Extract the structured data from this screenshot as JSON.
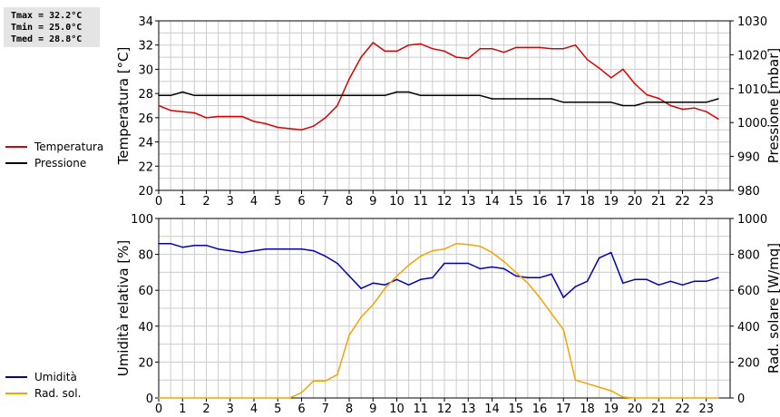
{
  "stats": {
    "tmax": "Tmax = 32.2°C",
    "tmin": "Tmin = 25.0°C",
    "tmed": "Tmed = 28.8°C"
  },
  "colors": {
    "temperature": "#dd0000",
    "pressure": "#000000",
    "humidity": "#0000bb",
    "radiation": "#f5a300",
    "grid": "#cccccc"
  },
  "chart_data": [
    {
      "type": "line",
      "x_tick_labels": [
        "0",
        "1",
        "2",
        "3",
        "4",
        "5",
        "6",
        "7",
        "8",
        "9",
        "10",
        "11",
        "12",
        "13",
        "14",
        "15",
        "16",
        "17",
        "18",
        "19",
        "20",
        "21",
        "22",
        "23"
      ],
      "xlim": [
        0,
        24
      ],
      "ylabel": "Temperatura [°C]",
      "ylim": [
        20,
        34
      ],
      "yticks": [
        20,
        22,
        24,
        26,
        28,
        30,
        32,
        34
      ],
      "y2label": "Pressione [mbar]",
      "y2lim": [
        980,
        1030
      ],
      "y2ticks": [
        980,
        990,
        1000,
        1010,
        1020,
        1030
      ],
      "grid": true,
      "legend": "left",
      "series": [
        {
          "name": "Temperatura",
          "axis": "left",
          "color_key": "temperature",
          "x": [
            0,
            0.5,
            1,
            1.5,
            2,
            2.5,
            3,
            3.5,
            4,
            4.5,
            5,
            5.5,
            6,
            6.5,
            7,
            7.5,
            8,
            8.5,
            9,
            9.5,
            10,
            10.5,
            11,
            11.5,
            12,
            12.5,
            13,
            13.5,
            14,
            14.5,
            15,
            15.5,
            16,
            16.5,
            17,
            17.5,
            18,
            18.5,
            19,
            19.5,
            20,
            20.5,
            21,
            21.5,
            22,
            22.5,
            23,
            23.5
          ],
          "values": [
            27.0,
            26.6,
            26.5,
            26.4,
            26.0,
            26.1,
            26.1,
            26.1,
            25.7,
            25.5,
            25.2,
            25.1,
            25.0,
            25.3,
            26.0,
            27.0,
            29.2,
            31.0,
            32.2,
            31.5,
            31.5,
            32.0,
            32.1,
            31.7,
            31.5,
            31.0,
            30.9,
            31.7,
            31.7,
            31.4,
            31.8,
            31.8,
            31.8,
            31.7,
            31.7,
            32.0,
            30.8,
            30.1,
            29.3,
            30.0,
            28.8,
            27.9,
            27.6,
            27.0,
            26.7,
            26.8,
            26.5,
            25.9
          ]
        },
        {
          "name": "Pressione",
          "axis": "right",
          "color_key": "pressure",
          "x": [
            0,
            0.5,
            1,
            1.5,
            2,
            2.5,
            3,
            3.5,
            4,
            4.5,
            5,
            5.5,
            6,
            6.5,
            7,
            7.5,
            8,
            8.5,
            9,
            9.5,
            10,
            10.5,
            11,
            11.5,
            12,
            12.5,
            13,
            13.5,
            14,
            14.5,
            15,
            15.5,
            16,
            16.5,
            17,
            17.5,
            18,
            18.5,
            19,
            19.5,
            20,
            20.5,
            21,
            21.5,
            22,
            22.5,
            23,
            23.5
          ],
          "values": [
            1008.0,
            1008.0,
            1009.0,
            1008.0,
            1008.0,
            1008.0,
            1008.0,
            1008.0,
            1008.0,
            1008.0,
            1008.0,
            1008.0,
            1008.0,
            1008.0,
            1008.0,
            1008.0,
            1008.0,
            1008.0,
            1008.0,
            1008.0,
            1009.0,
            1009.0,
            1008.0,
            1008.0,
            1008.0,
            1008.0,
            1008.0,
            1008.0,
            1007.0,
            1007.0,
            1007.0,
            1007.0,
            1007.0,
            1007.0,
            1006.0,
            1006.0,
            1006.0,
            1006.0,
            1006.0,
            1005.0,
            1005.0,
            1006.0,
            1006.0,
            1006.0,
            1006.0,
            1006.0,
            1006.0,
            1007.0
          ]
        }
      ]
    },
    {
      "type": "line",
      "x_tick_labels": [
        "0",
        "1",
        "2",
        "3",
        "4",
        "5",
        "6",
        "7",
        "8",
        "9",
        "10",
        "11",
        "12",
        "13",
        "14",
        "15",
        "16",
        "17",
        "18",
        "19",
        "20",
        "21",
        "22",
        "23"
      ],
      "xlim": [
        0,
        24
      ],
      "ylabel": "Umidità relativa [%]",
      "ylim": [
        0,
        100
      ],
      "yticks": [
        0,
        20,
        40,
        60,
        80,
        100
      ],
      "y2label": "Rad. solare [W/mq]",
      "y2lim": [
        0,
        1000
      ],
      "y2ticks": [
        0,
        200,
        400,
        600,
        800,
        1000
      ],
      "grid": true,
      "legend": "left",
      "series": [
        {
          "name": "Umidità",
          "axis": "left",
          "color_key": "humidity",
          "x": [
            0,
            0.5,
            1,
            1.5,
            2,
            2.5,
            3,
            3.5,
            4,
            4.5,
            5,
            5.5,
            6,
            6.5,
            7,
            7.5,
            8,
            8.5,
            9,
            9.5,
            10,
            10.5,
            11,
            11.5,
            12,
            12.5,
            13,
            13.5,
            14,
            14.5,
            15,
            15.5,
            16,
            16.5,
            17,
            17.5,
            18,
            18.5,
            19,
            19.5,
            20,
            20.5,
            21,
            21.5,
            22,
            22.5,
            23,
            23.5
          ],
          "values": [
            86,
            86,
            84,
            85,
            85,
            83,
            82,
            81,
            82,
            83,
            83,
            83,
            83,
            82,
            79,
            75,
            68,
            61,
            64,
            63,
            66,
            63,
            66,
            67,
            75,
            75,
            75,
            72,
            73,
            72,
            68,
            67,
            67,
            69,
            56,
            62,
            65,
            78,
            81,
            64,
            66,
            66,
            63,
            65,
            63,
            65,
            65,
            67
          ]
        },
        {
          "name": "Rad. sol.",
          "axis": "right",
          "color_key": "radiation",
          "x": [
            0,
            0.5,
            1,
            1.5,
            2,
            2.5,
            3,
            3.5,
            4,
            4.5,
            5,
            5.5,
            6,
            6.5,
            7,
            7.5,
            8,
            8.5,
            9,
            9.5,
            10,
            10.5,
            11,
            11.5,
            12,
            12.5,
            13,
            13.5,
            14,
            14.5,
            15,
            15.5,
            16,
            16.5,
            17,
            17.5,
            18,
            18.5,
            19,
            19.5,
            20,
            20.5,
            21,
            21.5,
            22,
            22.5,
            23,
            23.5
          ],
          "values": [
            0,
            0,
            0,
            0,
            0,
            0,
            0,
            0,
            0,
            0,
            0,
            0,
            30,
            95,
            95,
            130,
            350,
            450,
            520,
            610,
            680,
            740,
            790,
            820,
            830,
            860,
            855,
            845,
            810,
            760,
            700,
            640,
            560,
            470,
            380,
            100,
            80,
            60,
            40,
            5,
            0,
            0,
            0,
            0,
            0,
            0,
            0,
            0
          ]
        }
      ]
    }
  ]
}
